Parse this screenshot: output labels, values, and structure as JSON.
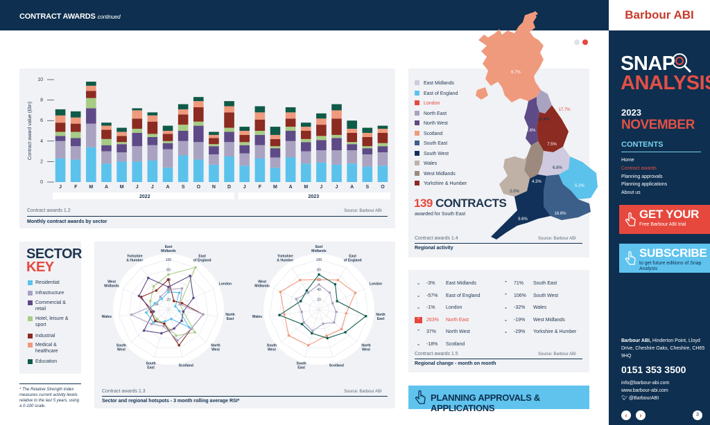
{
  "header": {
    "title": "CONTRACT AWARDS",
    "subtitle": "continued"
  },
  "brand": {
    "logo": "Barbour ABI"
  },
  "sidebar": {
    "snap": "SNAP",
    "analysis": "ANALYSIS",
    "year": "2023",
    "month": "NOVEMBER",
    "contents_title": "CONTENTS",
    "menu": [
      "Home",
      "Contract awards",
      "Planning approvals",
      "Planning applications",
      "About us"
    ],
    "trial_title": "GET YOUR",
    "trial_sub": "Free Barbour ABI trial",
    "subscribe_title": "SUBSCRIBE",
    "subscribe_sub": "to get future editions of Snap Analysis",
    "address_name": "Barbour ABI,",
    "address": "Hinderton Point, Lloyd Drive, Cheshire Oaks, Cheshire, CH65 9HQ",
    "phone": "0151 353 3500",
    "email": "info@barbour-abi.com",
    "web": "www.barbour-abi.com",
    "twitter": "@BarbourABI",
    "page": "3",
    "prev": "‹",
    "next": "›"
  },
  "colors": {
    "residential": "#5bc2ec",
    "infrastructure": "#a9a3c1",
    "commercial": "#5e4a86",
    "hotel": "#a7cc85",
    "industrial": "#8c2b21",
    "medical": "#ef9a7d",
    "education": "#0f5a48",
    "navy": "#0e2f4f",
    "red": "#e6483d"
  },
  "monthly_chart": {
    "caption": "Contract awards 1.2",
    "source": "Source: Barbour ABI",
    "subtitle": "Monthly contract awards by sector"
  },
  "chart_data": [
    {
      "type": "bar",
      "stacked": true,
      "categories": [
        "J",
        "F",
        "M",
        "A",
        "M",
        "J",
        "J",
        "A",
        "S",
        "O",
        "N",
        "D",
        "J",
        "F",
        "M",
        "A",
        "M",
        "J",
        "J",
        "A",
        "S",
        "O"
      ],
      "groups": [
        "2022",
        "2023"
      ],
      "ylabel": "Contract award value (£bn)",
      "ylim": [
        0,
        10
      ],
      "yticks": [
        0,
        2,
        4,
        6,
        8,
        10
      ],
      "series": [
        {
          "values": [
            2.3,
            2.2,
            3.4,
            1.8,
            2.0,
            2.0,
            2.1,
            1.4,
            2.6,
            2.2,
            1.7,
            2.5,
            1.6,
            2.3,
            1.4,
            2.4,
            1.8,
            1.9,
            1.7,
            1.8,
            1.5,
            1.6
          ]
        },
        {
          "values": [
            1.7,
            1.3,
            2.3,
            1.2,
            0.9,
            1.5,
            1.5,
            1.8,
            1.4,
            1.7,
            1.0,
            1.4,
            1.2,
            1.3,
            1.0,
            1.6,
            1.2,
            1.2,
            1.4,
            1.3,
            1.2,
            1.3
          ]
        },
        {
          "values": [
            0.5,
            0.8,
            1.5,
            0.6,
            0.8,
            1.3,
            0.8,
            0.6,
            1.0,
            1.6,
            0.8,
            1.0,
            0.8,
            1.0,
            0.9,
            1.0,
            0.9,
            1.0,
            1.2,
            0.6,
            0.6,
            0.6
          ]
        },
        {
          "values": [
            0.4,
            0.6,
            1.0,
            0.6,
            0.2,
            0.4,
            0.3,
            0.2,
            0.6,
            0.4,
            0.2,
            0.4,
            0.3,
            0.4,
            0.2,
            0.4,
            0.3,
            0.4,
            0.3,
            0.2,
            0.2,
            0.3
          ]
        },
        {
          "values": [
            0.9,
            0.8,
            0.7,
            0.9,
            0.6,
            1.0,
            1.2,
            0.7,
            1.0,
            1.4,
            0.6,
            1.5,
            0.7,
            1.1,
            0.7,
            0.8,
            0.8,
            1.1,
            1.6,
            0.9,
            0.9,
            1.0
          ]
        },
        {
          "values": [
            0.7,
            0.6,
            0.5,
            0.4,
            0.4,
            0.8,
            0.6,
            0.3,
            0.5,
            0.6,
            0.3,
            0.6,
            0.4,
            0.7,
            0.4,
            0.6,
            0.4,
            0.6,
            0.8,
            0.4,
            0.4,
            0.4
          ]
        },
        {
          "values": [
            0.6,
            0.6,
            0.4,
            0.3,
            0.4,
            0.2,
            0.3,
            0.5,
            0.5,
            0.4,
            0.3,
            0.5,
            0.4,
            0.6,
            0.8,
            0.5,
            0.4,
            0.5,
            0.6,
            0.8,
            0.5,
            0.3
          ]
        }
      ]
    },
    {
      "type": "radar",
      "axes": [
        "East Midlands",
        "East of England",
        "London",
        "North East",
        "North West",
        "Scotland",
        "South East",
        "South West",
        "Wales",
        "West Midlands",
        "Yorkshire & Humber"
      ],
      "ticks": [
        20,
        40,
        60,
        80,
        100
      ],
      "series": [
        {
          "values": [
            35,
            40,
            15,
            22,
            55,
            20,
            25,
            40,
            45,
            30,
            25
          ]
        },
        {
          "values": [
            70,
            100,
            25,
            30,
            70,
            55,
            30,
            30,
            35,
            40,
            55
          ]
        },
        {
          "values": [
            60,
            20,
            30,
            70,
            60,
            75,
            30,
            35,
            35,
            60,
            45
          ]
        },
        {
          "values": [
            45,
            80,
            55,
            30,
            35,
            40,
            50,
            65,
            30,
            65,
            75
          ]
        },
        {
          "values": [
            40,
            50,
            25,
            70,
            60,
            65,
            35,
            45,
            75,
            25,
            30
          ]
        }
      ]
    },
    {
      "type": "radar",
      "axes": [
        "East Midlands",
        "East of England",
        "London",
        "North East",
        "North West",
        "Scotland",
        "South East",
        "South West",
        "Wales",
        "West Midlands",
        "Yorkshire & Humber"
      ],
      "ticks": [
        20,
        40,
        60,
        80,
        100
      ],
      "series": [
        {
          "values": [
            50,
            40,
            30,
            35,
            40,
            30,
            45,
            40,
            35,
            50,
            40
          ]
        },
        {
          "values": [
            60,
            70,
            80,
            55,
            60,
            55,
            75,
            80,
            70,
            85,
            70
          ]
        },
        {
          "values": [
            70,
            60,
            40,
            95,
            70,
            60,
            50,
            45,
            80,
            40,
            45
          ]
        }
      ]
    }
  ],
  "sector_key": {
    "title1": "SECTOR",
    "title2": "KEY",
    "items": [
      "Residential",
      "Infrastructure",
      "Commercial & retail",
      "Hotel, leisure & sport",
      "Industrial",
      "Medical & healthcare",
      "Education"
    ],
    "footnote": "* The Relative Strength Index measures current activity levels relative to the last 5 years, using a 0-100 scale."
  },
  "hotspots": {
    "caption": "Contract awards 1.3",
    "source": "Source: Barbour ABI",
    "subtitle": "Sector and regional hotspots - 3 month rolling average RSI*"
  },
  "regional": {
    "legend": [
      "East Midlands",
      "East of England",
      "London",
      "North East",
      "North West",
      "Scotland",
      "South East",
      "South West",
      "Wales",
      "West Midlands",
      "Yorkshire & Humber"
    ],
    "legend_colors": [
      "#cfcadf",
      "#5bc2ec",
      "#e6483d",
      "#a9a3c1",
      "#5e4a86",
      "#ef9a7d",
      "#3c5f8a",
      "#12315a",
      "#bfb1a6",
      "#9c8a7e",
      "#8c2b21"
    ],
    "count": "139",
    "count_label": "CONTRACTS",
    "count_sub": "awarded for South East",
    "caption": "Contract awards 1.4",
    "source": "Source: Barbour ABI",
    "subtitle": "Regional activity",
    "map_labels": [
      "6.7%",
      "17.7%",
      "10.4%",
      "12.6%",
      "7.5%",
      "6.8%",
      "4.3%",
      "2.0%",
      "5.2%",
      "9.6%",
      "16.6%"
    ]
  },
  "change": {
    "left": [
      {
        "value": "-3%",
        "region": "East Midlands",
        "dir": "down",
        "hot": false
      },
      {
        "value": "-57%",
        "region": "East of England",
        "dir": "down",
        "hot": false
      },
      {
        "value": "-1%",
        "region": "London",
        "dir": "down",
        "hot": false
      },
      {
        "value": "263%",
        "region": "North East",
        "dir": "up",
        "hot": true
      },
      {
        "value": "37%",
        "region": "North West",
        "dir": "up",
        "hot": false
      },
      {
        "value": "-18%",
        "region": "Scotland",
        "dir": "down",
        "hot": false
      }
    ],
    "right": [
      {
        "value": "71%",
        "region": "South East",
        "dir": "up",
        "hot": false
      },
      {
        "value": "106%",
        "region": "South West",
        "dir": "up",
        "hot": false
      },
      {
        "value": "-32%",
        "region": "Wales",
        "dir": "down",
        "hot": false
      },
      {
        "value": "-19%",
        "region": "West Midlands",
        "dir": "down",
        "hot": false
      },
      {
        "value": "-29%",
        "region": "Yorkshire & Humber",
        "dir": "down",
        "hot": false
      }
    ],
    "caption": "Contract awards 1.5",
    "source": "Source: Barbour ABI",
    "subtitle": "Regional change - month on month"
  },
  "planning": {
    "label": "PLANNING APPROVALS & APPLICATIONS"
  }
}
